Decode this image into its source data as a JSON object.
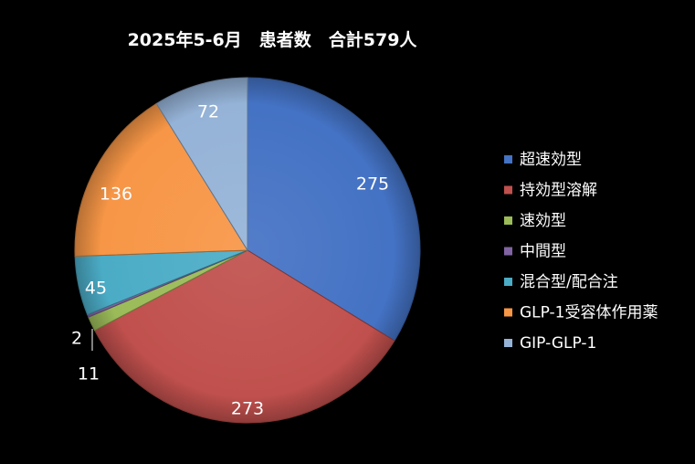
{
  "chart_data": {
    "type": "pie",
    "title": "2025年5-6月　患者数　合計579人",
    "legend_position": "right",
    "slices": [
      {
        "label": "超速効型",
        "value": 275,
        "color": "#4472C4"
      },
      {
        "label": "持効型溶解",
        "value": 273,
        "color": "#C0504D"
      },
      {
        "label": "速効型",
        "value": 11,
        "color": "#9BBB59"
      },
      {
        "label": "中間型",
        "value": 2,
        "color": "#8064A2"
      },
      {
        "label": "混合型/配合注",
        "value": 45,
        "color": "#4BACC6"
      },
      {
        "label": "GLP-1受容体作用薬",
        "value": 136,
        "color": "#F79646"
      },
      {
        "label": "GIP-GLP-1",
        "value": 72,
        "color": "#95B3D7"
      }
    ],
    "data_labels": [
      "275",
      "273",
      "11",
      "2",
      "45",
      "136",
      "72"
    ]
  }
}
